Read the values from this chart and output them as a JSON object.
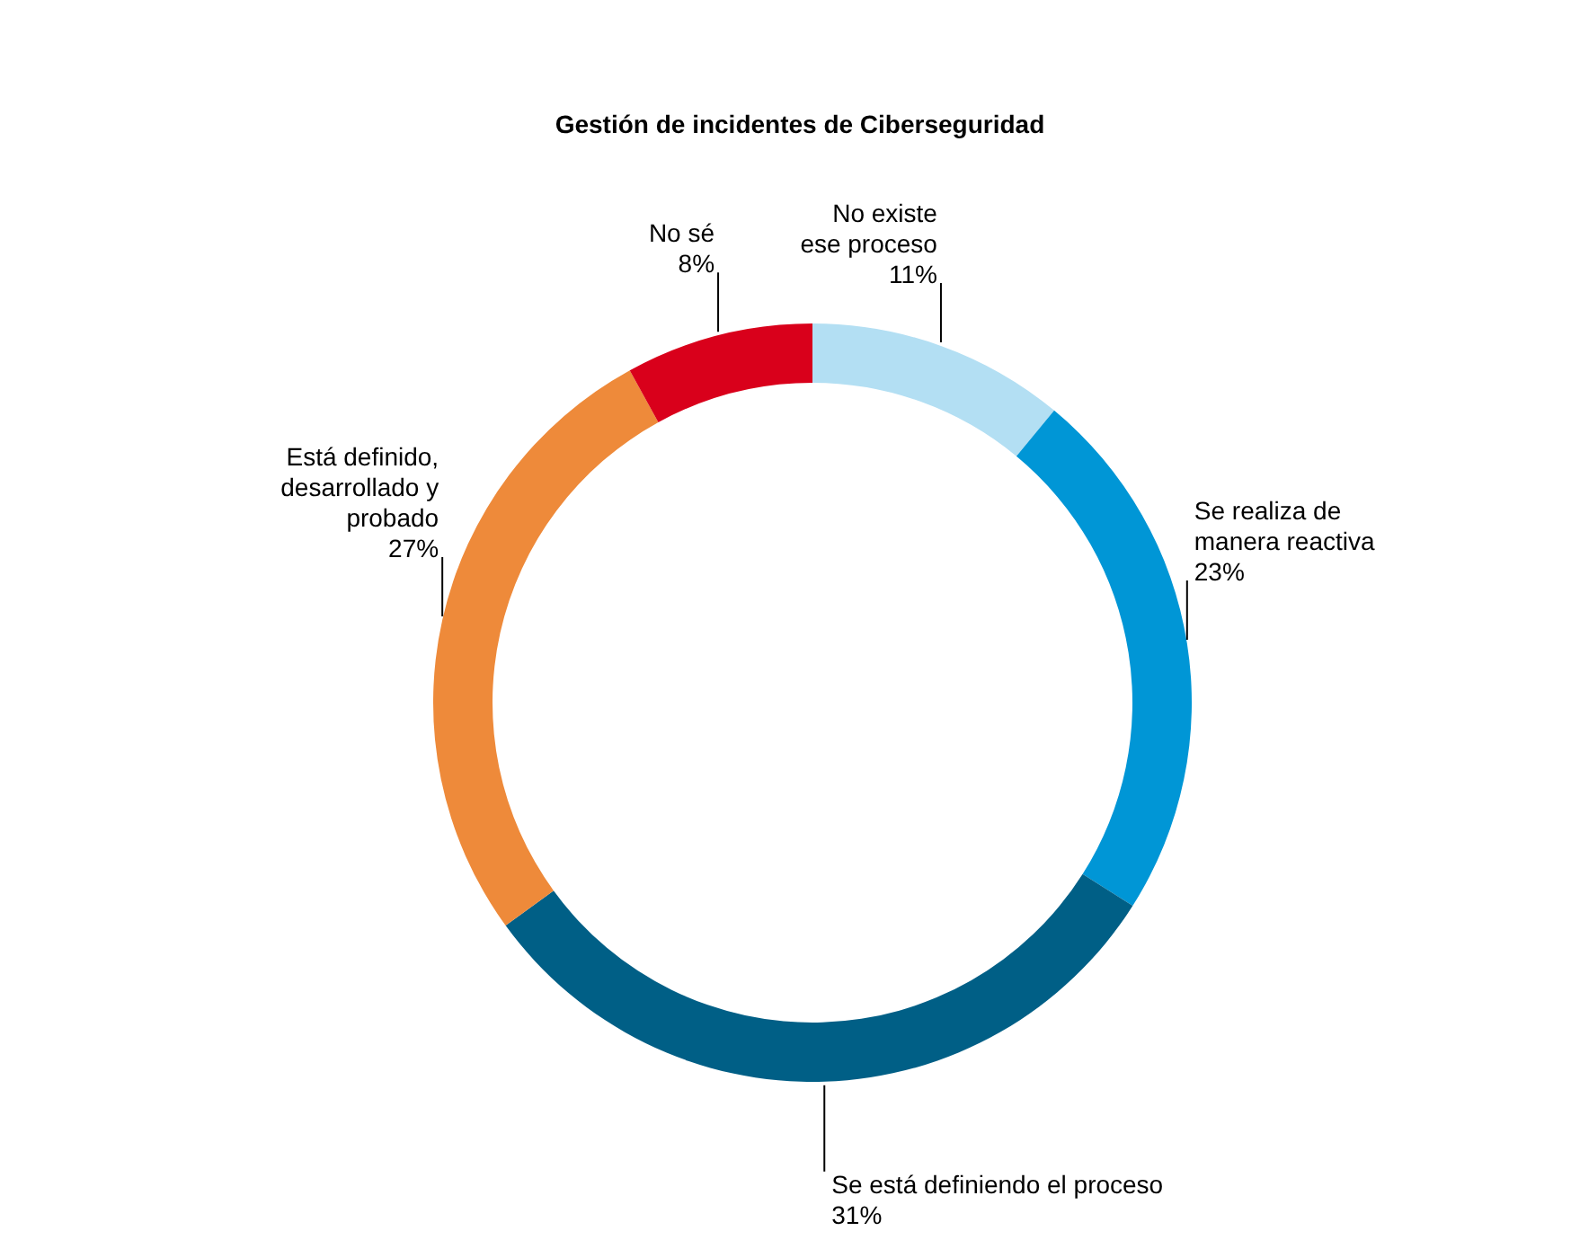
{
  "chart_data": {
    "type": "donut",
    "title": "Gestión de incidentes de Ciberseguridad",
    "categories": [
      "No existe\nese proceso",
      "Se realiza de\nmanera reactiva",
      "Se está definiendo el proceso",
      "Está definido,\ndesarrollado y\nprobado",
      "No sé"
    ],
    "values": [
      11,
      23,
      31,
      27,
      8
    ],
    "colors": [
      "#b3dff3",
      "#0096d6",
      "#005f86",
      "#ee8a3a",
      "#d9001b"
    ],
    "value_labels": [
      "11%",
      "23%",
      "31%",
      "27%",
      "8%"
    ]
  }
}
